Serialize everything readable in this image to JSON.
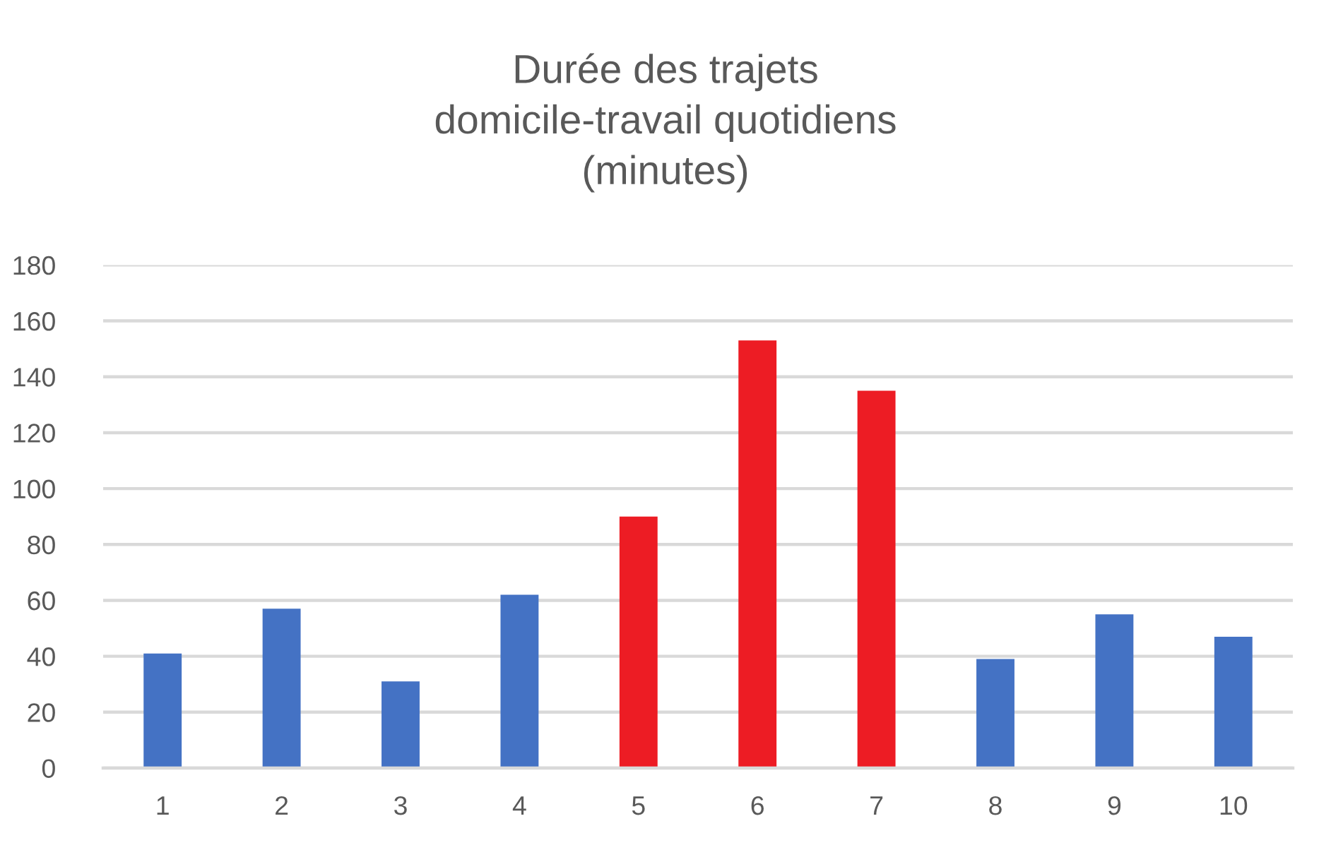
{
  "chart_data": {
    "type": "bar",
    "title": "Durée des trajets\ndomicile-travail quotidiens\n(minutes)",
    "categories": [
      "1",
      "2",
      "3",
      "4",
      "5",
      "6",
      "7",
      "8",
      "9",
      "10"
    ],
    "values": [
      41,
      57,
      31,
      62,
      90,
      153,
      135,
      39,
      55,
      47
    ],
    "colors": [
      "#4472c4",
      "#4472c4",
      "#4472c4",
      "#4472c4",
      "#ed1c24",
      "#ed1c24",
      "#ed1c24",
      "#4472c4",
      "#4472c4",
      "#4472c4"
    ],
    "ylim": [
      0,
      180
    ],
    "yticks": [
      0,
      20,
      40,
      60,
      80,
      100,
      120,
      140,
      160,
      180
    ],
    "grid": "y"
  }
}
